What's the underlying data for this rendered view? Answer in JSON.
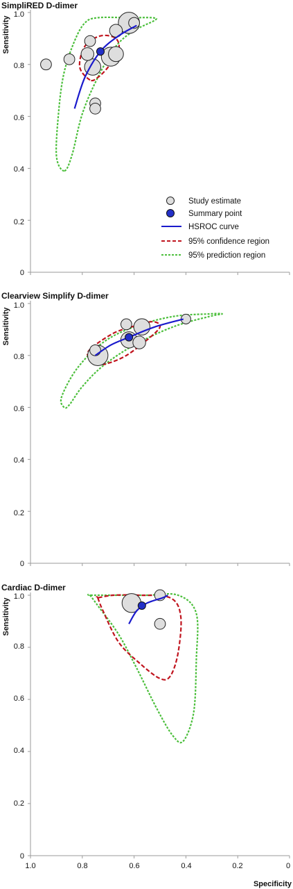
{
  "chart_data": [
    {
      "type": "scatter",
      "title": "SimpliRED D-dimer",
      "ylabel": "Sensitivity",
      "xlabel": "",
      "x_reversed": true,
      "xlim": [
        0,
        1
      ],
      "ylim": [
        0,
        1
      ],
      "yticks": [
        "0",
        "0.2",
        "0.4",
        "0.6",
        "0.8",
        "1.0"
      ],
      "xticks": [],
      "study_estimates": [
        {
          "specificity": 0.94,
          "sensitivity": 0.8,
          "weight": 3
        },
        {
          "specificity": 0.85,
          "sensitivity": 0.82,
          "weight": 3
        },
        {
          "specificity": 0.77,
          "sensitivity": 0.89,
          "weight": 3
        },
        {
          "specificity": 0.78,
          "sensitivity": 0.84,
          "weight": 5
        },
        {
          "specificity": 0.76,
          "sensitivity": 0.79,
          "weight": 10
        },
        {
          "specificity": 0.75,
          "sensitivity": 0.65,
          "weight": 3
        },
        {
          "specificity": 0.75,
          "sensitivity": 0.63,
          "weight": 3
        },
        {
          "specificity": 0.69,
          "sensitivity": 0.83,
          "weight": 15
        },
        {
          "specificity": 0.67,
          "sensitivity": 0.84,
          "weight": 8
        },
        {
          "specificity": 0.67,
          "sensitivity": 0.93,
          "weight": 5
        },
        {
          "specificity": 0.62,
          "sensitivity": 0.96,
          "weight": 20
        },
        {
          "specificity": 0.6,
          "sensitivity": 0.96,
          "weight": 3
        }
      ],
      "summary_point": {
        "specificity": 0.73,
        "sensitivity": 0.85
      },
      "hsroc_curve": [
        [
          0.83,
          0.63
        ],
        [
          0.79,
          0.75
        ],
        [
          0.73,
          0.85
        ],
        [
          0.66,
          0.91
        ],
        [
          0.59,
          0.95
        ]
      ],
      "confidence_region": [
        [
          0.77,
          0.74
        ],
        [
          0.81,
          0.79
        ],
        [
          0.79,
          0.87
        ],
        [
          0.73,
          0.91
        ],
        [
          0.67,
          0.9
        ],
        [
          0.66,
          0.85
        ],
        [
          0.7,
          0.79
        ],
        [
          0.74,
          0.75
        ]
      ],
      "prediction_region": [
        [
          0.87,
          0.39
        ],
        [
          0.9,
          0.45
        ],
        [
          0.89,
          0.63
        ],
        [
          0.87,
          0.77
        ],
        [
          0.83,
          0.89
        ],
        [
          0.79,
          0.96
        ],
        [
          0.74,
          0.98
        ],
        [
          0.62,
          0.98
        ],
        [
          0.53,
          0.98
        ],
        [
          0.52,
          0.97
        ],
        [
          0.6,
          0.93
        ],
        [
          0.67,
          0.87
        ],
        [
          0.74,
          0.75
        ],
        [
          0.8,
          0.61
        ],
        [
          0.84,
          0.45
        ]
      ]
    },
    {
      "type": "scatter",
      "title": "Clearview Simplify D-dimer",
      "ylabel": "Sensitivity",
      "xlabel": "",
      "x_reversed": true,
      "xlim": [
        0,
        1
      ],
      "ylim": [
        0,
        1
      ],
      "yticks": [
        "0",
        "0.2",
        "0.4",
        "0.6",
        "0.8",
        "1.0"
      ],
      "xticks": [],
      "study_estimates": [
        {
          "specificity": 0.75,
          "sensitivity": 0.82,
          "weight": 3
        },
        {
          "specificity": 0.74,
          "sensitivity": 0.8,
          "weight": 18
        },
        {
          "specificity": 0.63,
          "sensitivity": 0.92,
          "weight": 3
        },
        {
          "specificity": 0.62,
          "sensitivity": 0.86,
          "weight": 10
        },
        {
          "specificity": 0.58,
          "sensitivity": 0.85,
          "weight": 5
        },
        {
          "specificity": 0.57,
          "sensitivity": 0.91,
          "weight": 10
        },
        {
          "specificity": 0.4,
          "sensitivity": 0.94,
          "weight": 2
        }
      ],
      "summary_point": {
        "specificity": 0.62,
        "sensitivity": 0.87
      },
      "hsroc_curve": [
        [
          0.75,
          0.8
        ],
        [
          0.69,
          0.84
        ],
        [
          0.62,
          0.87
        ],
        [
          0.52,
          0.91
        ],
        [
          0.41,
          0.94
        ]
      ],
      "confidence_region": [
        [
          0.73,
          0.77
        ],
        [
          0.78,
          0.81
        ],
        [
          0.69,
          0.88
        ],
        [
          0.61,
          0.91
        ],
        [
          0.53,
          0.93
        ],
        [
          0.5,
          0.91
        ],
        [
          0.55,
          0.86
        ],
        [
          0.63,
          0.8
        ],
        [
          0.7,
          0.77
        ]
      ],
      "prediction_region": [
        [
          0.87,
          0.6
        ],
        [
          0.88,
          0.64
        ],
        [
          0.82,
          0.75
        ],
        [
          0.72,
          0.85
        ],
        [
          0.6,
          0.91
        ],
        [
          0.45,
          0.95
        ],
        [
          0.31,
          0.96
        ],
        [
          0.26,
          0.96
        ],
        [
          0.31,
          0.95
        ],
        [
          0.45,
          0.91
        ],
        [
          0.6,
          0.84
        ],
        [
          0.72,
          0.76
        ],
        [
          0.8,
          0.68
        ],
        [
          0.85,
          0.61
        ]
      ]
    },
    {
      "type": "scatter",
      "title": "Cardiac D-dimer",
      "ylabel": "Sensitivity",
      "xlabel": "Specificity",
      "x_reversed": true,
      "xlim": [
        0,
        1
      ],
      "ylim": [
        0,
        1
      ],
      "yticks": [
        "0",
        "0.2",
        "0.4",
        "0.6",
        "0.8",
        "1.0"
      ],
      "xticks": [
        "1.0",
        "0.8",
        "0.6",
        "0.4",
        "0.2",
        "0"
      ],
      "study_estimates": [
        {
          "specificity": 0.61,
          "sensitivity": 0.97,
          "weight": 15
        },
        {
          "specificity": 0.5,
          "sensitivity": 1.0,
          "weight": 3
        },
        {
          "specificity": 0.5,
          "sensitivity": 0.89,
          "weight": 3
        }
      ],
      "summary_point": {
        "specificity": 0.57,
        "sensitivity": 0.96
      },
      "hsroc_curve": [
        [
          0.62,
          0.89
        ],
        [
          0.59,
          0.94
        ],
        [
          0.55,
          0.97
        ],
        [
          0.49,
          0.99
        ],
        [
          0.47,
          1.0
        ]
      ],
      "confidence_region": [
        [
          0.74,
          0.99
        ],
        [
          0.72,
          0.94
        ],
        [
          0.66,
          0.82
        ],
        [
          0.58,
          0.74
        ],
        [
          0.5,
          0.68
        ],
        [
          0.46,
          0.69
        ],
        [
          0.43,
          0.78
        ],
        [
          0.42,
          0.92
        ],
        [
          0.46,
          0.99
        ],
        [
          0.58,
          1.0
        ],
        [
          0.68,
          1.0
        ],
        [
          0.74,
          0.99
        ]
      ],
      "prediction_region": [
        [
          0.77,
          1.0
        ],
        [
          0.74,
          0.96
        ],
        [
          0.66,
          0.85
        ],
        [
          0.59,
          0.72
        ],
        [
          0.51,
          0.56
        ],
        [
          0.45,
          0.46
        ],
        [
          0.41,
          0.44
        ],
        [
          0.37,
          0.55
        ],
        [
          0.36,
          0.75
        ],
        [
          0.36,
          0.93
        ],
        [
          0.43,
          1.0
        ],
        [
          0.55,
          1.0
        ],
        [
          0.68,
          1.0
        ],
        [
          0.77,
          1.0
        ]
      ]
    }
  ],
  "legend": {
    "items": [
      {
        "label": "Study estimate",
        "kind": "study"
      },
      {
        "label": "Summary point",
        "kind": "summary"
      },
      {
        "label": "HSROC curve",
        "kind": "hsroc"
      },
      {
        "label": "95% confidence region",
        "kind": "confidence"
      },
      {
        "label": "95% prediction region",
        "kind": "prediction"
      }
    ],
    "placement": "lower-right of first panel"
  },
  "colors": {
    "hsroc": "#1a1acc",
    "confidence": "#c0141e",
    "prediction": "#4cbf3c",
    "study_fill": "#dedede",
    "study_stroke": "#222222",
    "summary_fill": "#2330c8"
  }
}
